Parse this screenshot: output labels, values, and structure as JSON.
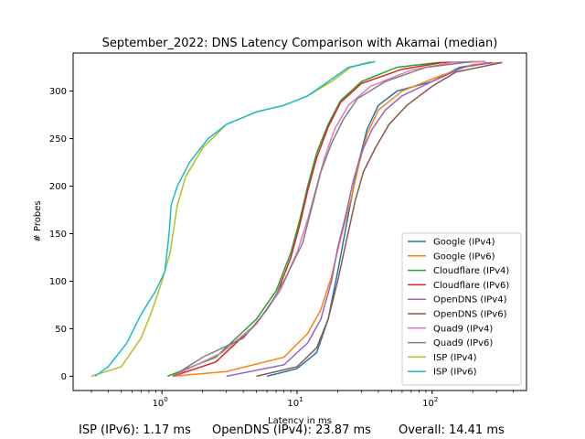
{
  "footer": {
    "stats": [
      {
        "label": "ISP (IPv6): 1.17 ms"
      },
      {
        "label": "OpenDNS (IPv4): 23.87 ms"
      },
      {
        "label": "Overall: 14.41 ms"
      }
    ]
  },
  "chart_data": {
    "type": "line",
    "title": "September_2022: DNS Latency Comparison with Akamai (median)",
    "xlabel": "Latency in ms",
    "ylabel": "# Probes",
    "xscale": "log",
    "xlim": [
      0.22,
      500
    ],
    "ylim": [
      -15,
      340
    ],
    "xticks": [
      {
        "value": 1,
        "label": "10^0"
      },
      {
        "value": 10,
        "label": "10^1"
      },
      {
        "value": 100,
        "label": "10^2"
      }
    ],
    "yticks": [
      0,
      50,
      100,
      150,
      200,
      250,
      300
    ],
    "grid": false,
    "legend_position": "lower-right",
    "series": [
      {
        "name": "Google (IPv4)",
        "color": "#1f77b4",
        "points": [
          [
            6,
            0
          ],
          [
            10,
            8
          ],
          [
            14,
            25
          ],
          [
            17,
            60
          ],
          [
            20,
            110
          ],
          [
            24,
            170
          ],
          [
            28,
            220
          ],
          [
            33,
            260
          ],
          [
            40,
            285
          ],
          [
            55,
            300
          ],
          [
            100,
            310
          ],
          [
            160,
            325
          ],
          [
            270,
            330
          ]
        ]
      },
      {
        "name": "Google (IPv6)",
        "color": "#ff7f0e",
        "points": [
          [
            1.2,
            0
          ],
          [
            3,
            5
          ],
          [
            8,
            20
          ],
          [
            12,
            45
          ],
          [
            15,
            70
          ],
          [
            18,
            105
          ],
          [
            21,
            145
          ],
          [
            25,
            185
          ],
          [
            29,
            225
          ],
          [
            33,
            255
          ],
          [
            40,
            280
          ],
          [
            60,
            300
          ],
          [
            110,
            315
          ],
          [
            200,
            328
          ],
          [
            330,
            330
          ]
        ]
      },
      {
        "name": "Cloudflare (IPv4)",
        "color": "#2ca02c",
        "points": [
          [
            1.1,
            0
          ],
          [
            2.5,
            20
          ],
          [
            5,
            60
          ],
          [
            7,
            90
          ],
          [
            9,
            130
          ],
          [
            10.5,
            165
          ],
          [
            12,
            200
          ],
          [
            14,
            235
          ],
          [
            17,
            265
          ],
          [
            21,
            290
          ],
          [
            30,
            310
          ],
          [
            55,
            325
          ],
          [
            110,
            330
          ],
          [
            220,
            331
          ]
        ]
      },
      {
        "name": "Cloudflare (IPv6)",
        "color": "#d62728",
        "points": [
          [
            1.2,
            0
          ],
          [
            2.5,
            15
          ],
          [
            5,
            55
          ],
          [
            7,
            85
          ],
          [
            9,
            125
          ],
          [
            10.5,
            160
          ],
          [
            12,
            195
          ],
          [
            14,
            230
          ],
          [
            17,
            262
          ],
          [
            21,
            288
          ],
          [
            30,
            308
          ],
          [
            60,
            323
          ],
          [
            120,
            330
          ],
          [
            250,
            331
          ]
        ]
      },
      {
        "name": "OpenDNS (IPv4)",
        "color": "#9467bd",
        "points": [
          [
            3,
            0
          ],
          [
            8,
            12
          ],
          [
            12,
            35
          ],
          [
            15,
            60
          ],
          [
            18,
            100
          ],
          [
            20,
            135
          ],
          [
            23,
            170
          ],
          [
            26,
            205
          ],
          [
            30,
            235
          ],
          [
            36,
            260
          ],
          [
            45,
            280
          ],
          [
            60,
            295
          ],
          [
            100,
            310
          ],
          [
            170,
            325
          ],
          [
            280,
            330
          ]
        ]
      },
      {
        "name": "OpenDNS (IPv6)",
        "color": "#8c564b",
        "points": [
          [
            5,
            0
          ],
          [
            10,
            10
          ],
          [
            14,
            30
          ],
          [
            17,
            60
          ],
          [
            20,
            100
          ],
          [
            23,
            140
          ],
          [
            27,
            185
          ],
          [
            31,
            215
          ],
          [
            38,
            240
          ],
          [
            48,
            265
          ],
          [
            65,
            285
          ],
          [
            100,
            305
          ],
          [
            150,
            320
          ],
          [
            330,
            330
          ]
        ]
      },
      {
        "name": "Quad9 (IPv4)",
        "color": "#e377c2",
        "points": [
          [
            1.2,
            0
          ],
          [
            2.8,
            25
          ],
          [
            5,
            55
          ],
          [
            7.5,
            90
          ],
          [
            10,
            130
          ],
          [
            12,
            165
          ],
          [
            14,
            200
          ],
          [
            16,
            230
          ],
          [
            19,
            260
          ],
          [
            24,
            285
          ],
          [
            35,
            305
          ],
          [
            70,
            322
          ],
          [
            140,
            330
          ],
          [
            250,
            331
          ]
        ]
      },
      {
        "name": "Quad9 (IPv6)",
        "color": "#7f7f7f",
        "points": [
          [
            1.2,
            0
          ],
          [
            2,
            20
          ],
          [
            4,
            40
          ],
          [
            6,
            70
          ],
          [
            8,
            100
          ],
          [
            11,
            140
          ],
          [
            13,
            180
          ],
          [
            15,
            215
          ],
          [
            18,
            245
          ],
          [
            22,
            270
          ],
          [
            28,
            292
          ],
          [
            45,
            310
          ],
          [
            90,
            325
          ],
          [
            200,
            331
          ]
        ]
      },
      {
        "name": "ISP (IPv4)",
        "color": "#bcbd22",
        "points": [
          [
            0.3,
            0
          ],
          [
            0.5,
            10
          ],
          [
            0.7,
            40
          ],
          [
            0.85,
            70
          ],
          [
            1.0,
            100
          ],
          [
            1.15,
            130
          ],
          [
            1.3,
            180
          ],
          [
            1.5,
            210
          ],
          [
            2,
            240
          ],
          [
            3,
            265
          ],
          [
            5,
            278
          ],
          [
            8,
            285
          ],
          [
            12,
            295
          ],
          [
            18,
            310
          ],
          [
            25,
            325
          ],
          [
            35,
            331
          ]
        ]
      },
      {
        "name": "ISP (IPv6)",
        "color": "#17becf",
        "points": [
          [
            0.32,
            0
          ],
          [
            0.4,
            10
          ],
          [
            0.55,
            35
          ],
          [
            0.7,
            65
          ],
          [
            0.9,
            90
          ],
          [
            1.05,
            110
          ],
          [
            1.13,
            150
          ],
          [
            1.17,
            180
          ],
          [
            1.3,
            200
          ],
          [
            1.6,
            225
          ],
          [
            2.2,
            250
          ],
          [
            3,
            265
          ],
          [
            5,
            278
          ],
          [
            8,
            285
          ],
          [
            12,
            295
          ],
          [
            17,
            310
          ],
          [
            24,
            325
          ],
          [
            38,
            331
          ]
        ]
      }
    ]
  }
}
